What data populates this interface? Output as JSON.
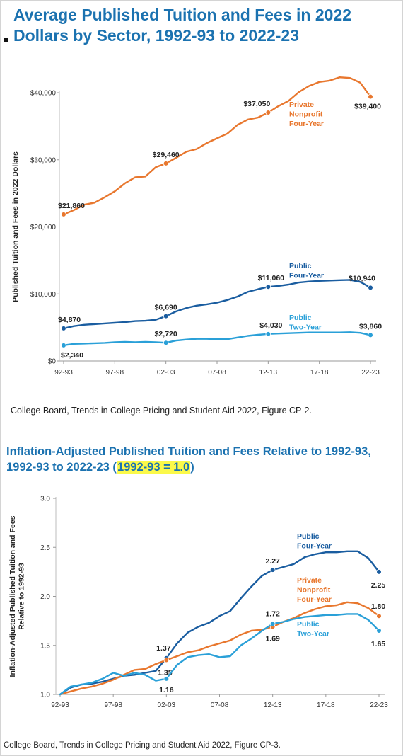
{
  "chart_data": [
    {
      "type": "line",
      "title": "Average Published Tuition and Fees in 2022 Dollars by Sector, 1992-93 to 2022-23",
      "ylabel": "Published Tuition and Fees in 2022 Dollars",
      "xlabel": "",
      "ylim": [
        0,
        40000
      ],
      "y_ticks": [
        0,
        10000,
        20000,
        30000,
        40000
      ],
      "y_tick_labels": [
        "$0",
        "$10,000",
        "$20,000",
        "$30,000",
        "$40,000"
      ],
      "x": [
        "92-93",
        "93-94",
        "94-95",
        "95-96",
        "96-97",
        "97-98",
        "98-99",
        "99-00",
        "00-01",
        "01-02",
        "02-03",
        "03-04",
        "04-05",
        "05-06",
        "06-07",
        "07-08",
        "08-09",
        "09-10",
        "10-11",
        "11-12",
        "12-13",
        "13-14",
        "14-15",
        "15-16",
        "16-17",
        "17-18",
        "18-19",
        "19-20",
        "20-21",
        "21-22",
        "22-23"
      ],
      "x_tick_labels": [
        "92-93",
        "97-98",
        "02-03",
        "07-08",
        "12-13",
        "17-18",
        "22-23"
      ],
      "grid": false,
      "series": [
        {
          "name": "Private Nonprofit Four-Year",
          "color": "#e8772e",
          "values": [
            21860,
            22500,
            23300,
            23600,
            24400,
            25300,
            26500,
            27400,
            27500,
            28900,
            29460,
            30300,
            31200,
            31600,
            32500,
            33200,
            33900,
            35200,
            36000,
            36300,
            37050,
            38000,
            38800,
            40100,
            41000,
            41600,
            41800,
            42300,
            42200,
            41500,
            39400
          ],
          "annotations": [
            {
              "index": 0,
              "text": "$21,860"
            },
            {
              "index": 10,
              "text": "$29,460"
            },
            {
              "index": 20,
              "text": "$37,050"
            },
            {
              "index": 30,
              "text": "$39,400"
            }
          ]
        },
        {
          "name": "Public Four-Year",
          "color": "#1a5da0",
          "values": [
            4870,
            5200,
            5400,
            5500,
            5600,
            5700,
            5800,
            5950,
            6000,
            6150,
            6690,
            7400,
            7900,
            8250,
            8450,
            8700,
            9100,
            9600,
            10300,
            10700,
            11060,
            11200,
            11400,
            11700,
            11850,
            11950,
            12000,
            12050,
            12100,
            11800,
            10940
          ],
          "annotations": [
            {
              "index": 0,
              "text": "$4,870"
            },
            {
              "index": 10,
              "text": "$6,690"
            },
            {
              "index": 20,
              "text": "$11,060"
            },
            {
              "index": 30,
              "text": "$10,940"
            }
          ]
        },
        {
          "name": "Public Two-Year",
          "color": "#2aa0d8",
          "values": [
            2340,
            2550,
            2600,
            2650,
            2700,
            2800,
            2850,
            2800,
            2850,
            2800,
            2720,
            3050,
            3200,
            3300,
            3300,
            3250,
            3250,
            3500,
            3750,
            3900,
            4030,
            4100,
            4150,
            4200,
            4250,
            4250,
            4250,
            4250,
            4300,
            4200,
            3860
          ],
          "annotations": [
            {
              "index": 0,
              "text": "$2,340"
            },
            {
              "index": 10,
              "text": "$2,720"
            },
            {
              "index": 20,
              "text": "$4,030"
            },
            {
              "index": 30,
              "text": "$3,860"
            }
          ]
        }
      ],
      "legend": [
        {
          "lines": [
            "Private",
            "Nonprofit",
            "Four-Year"
          ],
          "series": 0
        },
        {
          "lines": [
            "Public",
            "Four-Year"
          ],
          "series": 1
        },
        {
          "lines": [
            "Public",
            "Two-Year"
          ],
          "series": 2
        }
      ]
    },
    {
      "type": "line",
      "title": "Inflation-Adjusted Published Tuition and Fees Relative to 1992-93, 1992-93 to 2022-23 (1992-93 = 1.0)",
      "ylabel": "Inflation-Adjusted Published Tuition and Fees Relative to 1992-93",
      "xlabel": "",
      "ylim": [
        1.0,
        3.0
      ],
      "y_ticks": [
        1.0,
        1.5,
        2.0,
        2.5,
        3.0
      ],
      "y_tick_labels": [
        "1.0",
        "1.5",
        "2.0",
        "2.5",
        "3.0"
      ],
      "x": [
        "92-93",
        "93-94",
        "94-95",
        "95-96",
        "96-97",
        "97-98",
        "98-99",
        "99-00",
        "00-01",
        "01-02",
        "02-03",
        "03-04",
        "04-05",
        "05-06",
        "06-07",
        "07-08",
        "08-09",
        "09-10",
        "10-11",
        "11-12",
        "12-13",
        "13-14",
        "14-15",
        "15-16",
        "16-17",
        "17-18",
        "18-19",
        "19-20",
        "20-21",
        "21-22",
        "22-23"
      ],
      "x_tick_labels": [
        "92-93",
        "97-98",
        "02-03",
        "07-08",
        "12-13",
        "17-18",
        "22-23"
      ],
      "grid": false,
      "series": [
        {
          "name": "Public Four-Year",
          "color": "#1a5da0",
          "values": [
            1.0,
            1.07,
            1.1,
            1.11,
            1.13,
            1.16,
            1.19,
            1.2,
            1.22,
            1.24,
            1.37,
            1.52,
            1.63,
            1.69,
            1.73,
            1.8,
            1.85,
            1.98,
            2.1,
            2.21,
            2.27,
            2.3,
            2.33,
            2.4,
            2.43,
            2.45,
            2.45,
            2.46,
            2.46,
            2.39,
            2.25
          ],
          "annotations": [
            {
              "index": 10,
              "text": "1.37"
            },
            {
              "index": 20,
              "text": "2.27"
            },
            {
              "index": 30,
              "text": "2.25"
            }
          ]
        },
        {
          "name": "Private Nonprofit Four-Year",
          "color": "#e8772e",
          "values": [
            1.0,
            1.03,
            1.06,
            1.08,
            1.11,
            1.15,
            1.2,
            1.25,
            1.26,
            1.31,
            1.35,
            1.39,
            1.43,
            1.45,
            1.49,
            1.52,
            1.55,
            1.61,
            1.65,
            1.66,
            1.69,
            1.74,
            1.78,
            1.83,
            1.87,
            1.9,
            1.91,
            1.94,
            1.93,
            1.88,
            1.8
          ],
          "annotations": [
            {
              "index": 10,
              "text": "1.35"
            },
            {
              "index": 20,
              "text": "1.69"
            },
            {
              "index": 30,
              "text": "1.80"
            }
          ]
        },
        {
          "name": "Public Two-Year",
          "color": "#2aa0d8",
          "values": [
            1.0,
            1.08,
            1.1,
            1.12,
            1.16,
            1.22,
            1.19,
            1.22,
            1.2,
            1.14,
            1.16,
            1.3,
            1.38,
            1.4,
            1.41,
            1.38,
            1.39,
            1.5,
            1.57,
            1.65,
            1.72,
            1.74,
            1.77,
            1.79,
            1.8,
            1.81,
            1.81,
            1.82,
            1.82,
            1.76,
            1.65
          ],
          "annotations": [
            {
              "index": 10,
              "text": "1.16"
            },
            {
              "index": 20,
              "text": "1.72"
            },
            {
              "index": 30,
              "text": "1.65"
            }
          ]
        }
      ],
      "legend": [
        {
          "lines": [
            "Public",
            "Four-Year"
          ],
          "series": 0
        },
        {
          "lines": [
            "Private",
            "Nonprofit",
            "Four-Year"
          ],
          "series": 1
        },
        {
          "lines": [
            "Public",
            "Two-Year"
          ],
          "series": 2
        }
      ]
    }
  ],
  "source1": "College Board, Trends in College Pricing and Student Aid 2022, Figure CP-2.",
  "title2_prefix": "Inflation-Adjusted Published Tuition and Fees Relative to 1992-93, 1992-93 to 2022-23 (",
  "title2_highlight": "1992-93 = 1.0",
  "title2_suffix": ")",
  "source2": "College Board, Trends in College Pricing and Student Aid 2022, Figure CP-3."
}
